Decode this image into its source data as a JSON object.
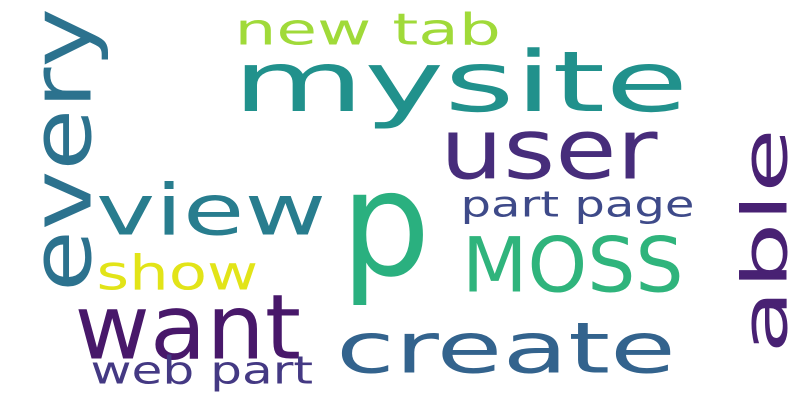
{
  "words": [
    {
      "id": "p",
      "text": "p",
      "color": "#2ab07f",
      "rotated": false
    },
    {
      "id": "mysite",
      "text": "mysite",
      "color": "#21918c",
      "rotated": false
    },
    {
      "id": "user",
      "text": "user",
      "color": "#472d7b",
      "rotated": false
    },
    {
      "id": "moss",
      "text": "MOSS",
      "color": "#2fb47c",
      "rotated": false
    },
    {
      "id": "view",
      "text": "view",
      "color": "#287d8e",
      "rotated": false
    },
    {
      "id": "want",
      "text": "want",
      "color": "#48186a",
      "rotated": false
    },
    {
      "id": "create",
      "text": "create",
      "color": "#33638d",
      "rotated": false
    },
    {
      "id": "every",
      "text": "every",
      "color": "#2c728e",
      "rotated": true
    },
    {
      "id": "able",
      "text": "able",
      "color": "#482173",
      "rotated": true
    },
    {
      "id": "show",
      "text": "show",
      "color": "#e2e418",
      "rotated": false
    },
    {
      "id": "new-tab",
      "text": "new tab",
      "color": "#a0da39",
      "rotated": false
    },
    {
      "id": "part-page",
      "text": "part page",
      "color": "#3e4a89",
      "rotated": false
    },
    {
      "id": "web-part",
      "text": "web part",
      "color": "#443983",
      "rotated": false
    }
  ]
}
